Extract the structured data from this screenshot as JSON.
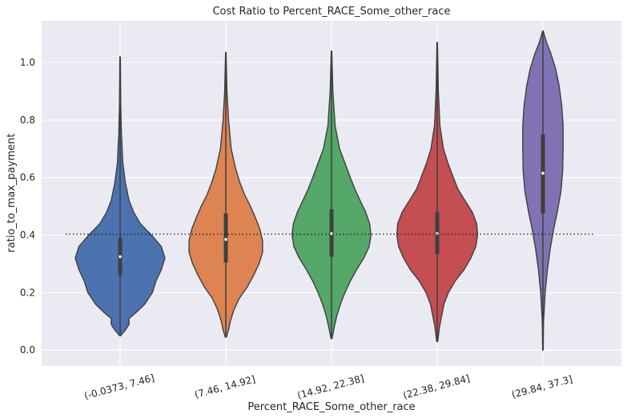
{
  "chart_data": {
    "type": "violin",
    "title": "Cost Ratio to Percent_RACE_Some_other_race",
    "xlabel": "Percent_RACE_Some_other_race",
    "ylabel": "ratio_to_max_payment",
    "ylim": [
      -0.055,
      1.145
    ],
    "yticks": [
      0.0,
      0.2,
      0.4,
      0.6,
      0.8,
      1.0
    ],
    "ytick_labels": [
      "0.0",
      "0.2",
      "0.4",
      "0.6",
      "0.8",
      "1.0"
    ],
    "grid": true,
    "background": "#eaeaf2",
    "reference_line": {
      "y": 0.403,
      "style": "dotted",
      "color": "#262626"
    },
    "categories": [
      "(-0.0373, 7.46]",
      "(7.46, 14.92]",
      "(14.92, 22.38]",
      "(22.38, 29.84]",
      "(29.84, 37.3]"
    ],
    "colors": [
      "#4c72b0",
      "#dd8452",
      "#55a868",
      "#c44e52",
      "#8172b3"
    ],
    "violins": [
      {
        "min": 0.05,
        "max": 1.02,
        "q1": 0.26,
        "median": 0.325,
        "q3": 0.39,
        "profile": [
          [
            0.05,
            0.01
          ],
          [
            0.07,
            0.12
          ],
          [
            0.09,
            0.2
          ],
          [
            0.11,
            0.2
          ],
          [
            0.13,
            0.35
          ],
          [
            0.16,
            0.55
          ],
          [
            0.2,
            0.72
          ],
          [
            0.24,
            0.8
          ],
          [
            0.28,
            0.92
          ],
          [
            0.32,
            1.0
          ],
          [
            0.36,
            0.92
          ],
          [
            0.4,
            0.7
          ],
          [
            0.44,
            0.45
          ],
          [
            0.48,
            0.3
          ],
          [
            0.52,
            0.2
          ],
          [
            0.58,
            0.12
          ],
          [
            0.65,
            0.06
          ],
          [
            0.75,
            0.03
          ],
          [
            0.85,
            0.015
          ],
          [
            1.02,
            0.005
          ]
        ]
      },
      {
        "min": 0.045,
        "max": 1.035,
        "q1": 0.305,
        "median": 0.385,
        "q3": 0.475,
        "profile": [
          [
            0.045,
            0.01
          ],
          [
            0.07,
            0.06
          ],
          [
            0.1,
            0.1
          ],
          [
            0.14,
            0.18
          ],
          [
            0.18,
            0.3
          ],
          [
            0.22,
            0.48
          ],
          [
            0.26,
            0.62
          ],
          [
            0.3,
            0.74
          ],
          [
            0.34,
            0.82
          ],
          [
            0.38,
            0.82
          ],
          [
            0.42,
            0.76
          ],
          [
            0.46,
            0.66
          ],
          [
            0.5,
            0.55
          ],
          [
            0.54,
            0.42
          ],
          [
            0.58,
            0.32
          ],
          [
            0.63,
            0.22
          ],
          [
            0.7,
            0.12
          ],
          [
            0.8,
            0.06
          ],
          [
            0.9,
            0.025
          ],
          [
            1.035,
            0.005
          ]
        ]
      },
      {
        "min": 0.04,
        "max": 1.04,
        "q1": 0.325,
        "median": 0.405,
        "q3": 0.49,
        "profile": [
          [
            0.04,
            0.01
          ],
          [
            0.08,
            0.06
          ],
          [
            0.12,
            0.12
          ],
          [
            0.16,
            0.2
          ],
          [
            0.2,
            0.3
          ],
          [
            0.24,
            0.42
          ],
          [
            0.28,
            0.56
          ],
          [
            0.32,
            0.72
          ],
          [
            0.36,
            0.84
          ],
          [
            0.4,
            0.88
          ],
          [
            0.44,
            0.85
          ],
          [
            0.48,
            0.76
          ],
          [
            0.52,
            0.64
          ],
          [
            0.56,
            0.52
          ],
          [
            0.6,
            0.42
          ],
          [
            0.65,
            0.3
          ],
          [
            0.7,
            0.18
          ],
          [
            0.78,
            0.08
          ],
          [
            0.9,
            0.03
          ],
          [
            1.04,
            0.005
          ]
        ]
      },
      {
        "min": 0.03,
        "max": 1.07,
        "q1": 0.335,
        "median": 0.405,
        "q3": 0.48,
        "profile": [
          [
            0.03,
            0.01
          ],
          [
            0.08,
            0.05
          ],
          [
            0.12,
            0.1
          ],
          [
            0.16,
            0.15
          ],
          [
            0.2,
            0.25
          ],
          [
            0.24,
            0.4
          ],
          [
            0.28,
            0.6
          ],
          [
            0.32,
            0.75
          ],
          [
            0.36,
            0.86
          ],
          [
            0.4,
            0.9
          ],
          [
            0.44,
            0.88
          ],
          [
            0.48,
            0.78
          ],
          [
            0.52,
            0.62
          ],
          [
            0.56,
            0.46
          ],
          [
            0.6,
            0.36
          ],
          [
            0.65,
            0.24
          ],
          [
            0.7,
            0.14
          ],
          [
            0.78,
            0.06
          ],
          [
            0.9,
            0.025
          ],
          [
            1.07,
            0.005
          ]
        ]
      },
      {
        "min": 0.0,
        "max": 1.11,
        "q1": 0.475,
        "median": 0.615,
        "q3": 0.75,
        "profile": [
          [
            0.0,
            0.005
          ],
          [
            0.1,
            0.015
          ],
          [
            0.2,
            0.05
          ],
          [
            0.28,
            0.1
          ],
          [
            0.35,
            0.16
          ],
          [
            0.42,
            0.24
          ],
          [
            0.48,
            0.32
          ],
          [
            0.55,
            0.4
          ],
          [
            0.62,
            0.44
          ],
          [
            0.7,
            0.45
          ],
          [
            0.78,
            0.45
          ],
          [
            0.85,
            0.42
          ],
          [
            0.92,
            0.36
          ],
          [
            0.98,
            0.28
          ],
          [
            1.03,
            0.18
          ],
          [
            1.07,
            0.08
          ],
          [
            1.11,
            0.005
          ]
        ]
      }
    ]
  }
}
